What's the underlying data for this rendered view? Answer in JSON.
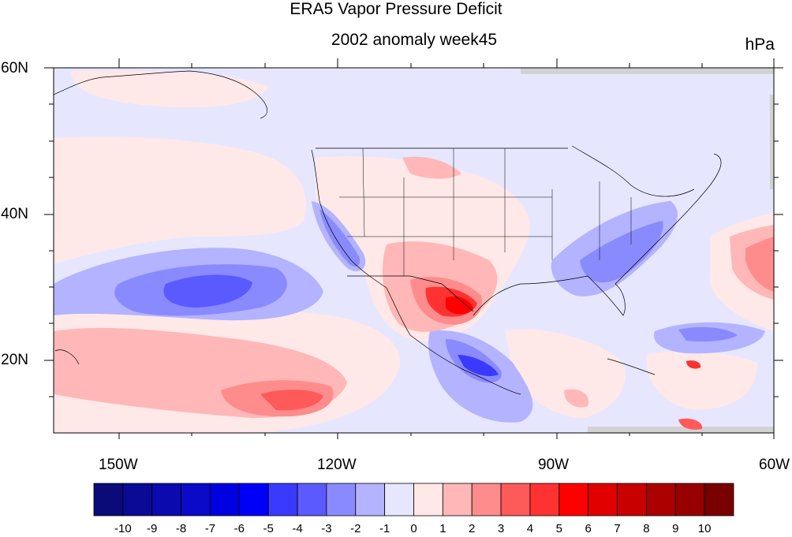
{
  "title": "ERA5 Vapor Pressure Deficit",
  "subtitle": "2002 anomaly week45",
  "units": "hPa",
  "lat_labels": [
    "60N",
    "40N",
    "20N"
  ],
  "lon_labels": [
    "150W",
    "120W",
    "90W",
    "60W"
  ],
  "colorbar": {
    "labels": [
      "-10",
      "-9",
      "-8",
      "-7",
      "-6",
      "-5",
      "-4",
      "-3",
      "-2",
      "-1",
      "0",
      "1",
      "2",
      "3",
      "4",
      "5",
      "6",
      "7",
      "8",
      "9",
      "10"
    ],
    "colors": [
      "#0a0a78",
      "#0a0a96",
      "#0a0aaf",
      "#0a0ac8",
      "#0000e1",
      "#0000fa",
      "#3a3aff",
      "#5a5aff",
      "#8a8aff",
      "#b3b3ff",
      "#e6e6ff",
      "#ffe8e8",
      "#ffb7b7",
      "#ff8c8c",
      "#ff5a5a",
      "#ff3232",
      "#ff0000",
      "#e10000",
      "#c80000",
      "#aa0000",
      "#960000",
      "#780000"
    ]
  },
  "map": {
    "background_color": "#e6e6ff",
    "missing_color": "#d2d2d2"
  }
}
